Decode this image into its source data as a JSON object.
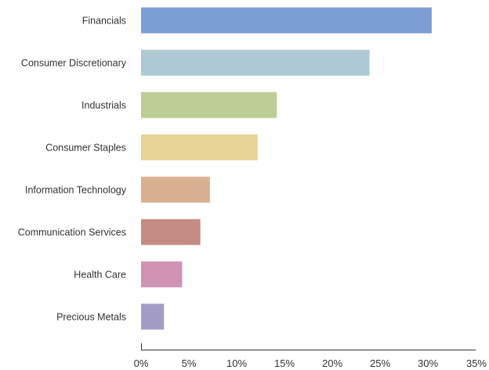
{
  "chart_data": {
    "type": "bar",
    "orientation": "horizontal",
    "title": "",
    "xlabel": "",
    "ylabel": "",
    "categories": [
      "Financials",
      "Consumer Discretionary",
      "Industrials",
      "Consumer Staples",
      "Information Technology",
      "Communication Services",
      "Health Care",
      "Precious Metals"
    ],
    "values": [
      30.4,
      23.9,
      14.2,
      12.2,
      7.2,
      6.2,
      4.3,
      2.4
    ],
    "colors": [
      "#7b9fd4",
      "#adc9d1",
      "#bdcd95",
      "#e8d595",
      "#d7b190",
      "#c58c83",
      "#cf93b3",
      "#a39dc5"
    ],
    "xlim": [
      0,
      35
    ],
    "xticks": [
      0,
      5,
      10,
      15,
      20,
      25,
      30,
      35
    ],
    "xtick_labels": [
      "0%",
      "5%",
      "10%",
      "15%",
      "20%",
      "25%",
      "30%",
      "35%"
    ],
    "grid": false,
    "legend": "none"
  }
}
